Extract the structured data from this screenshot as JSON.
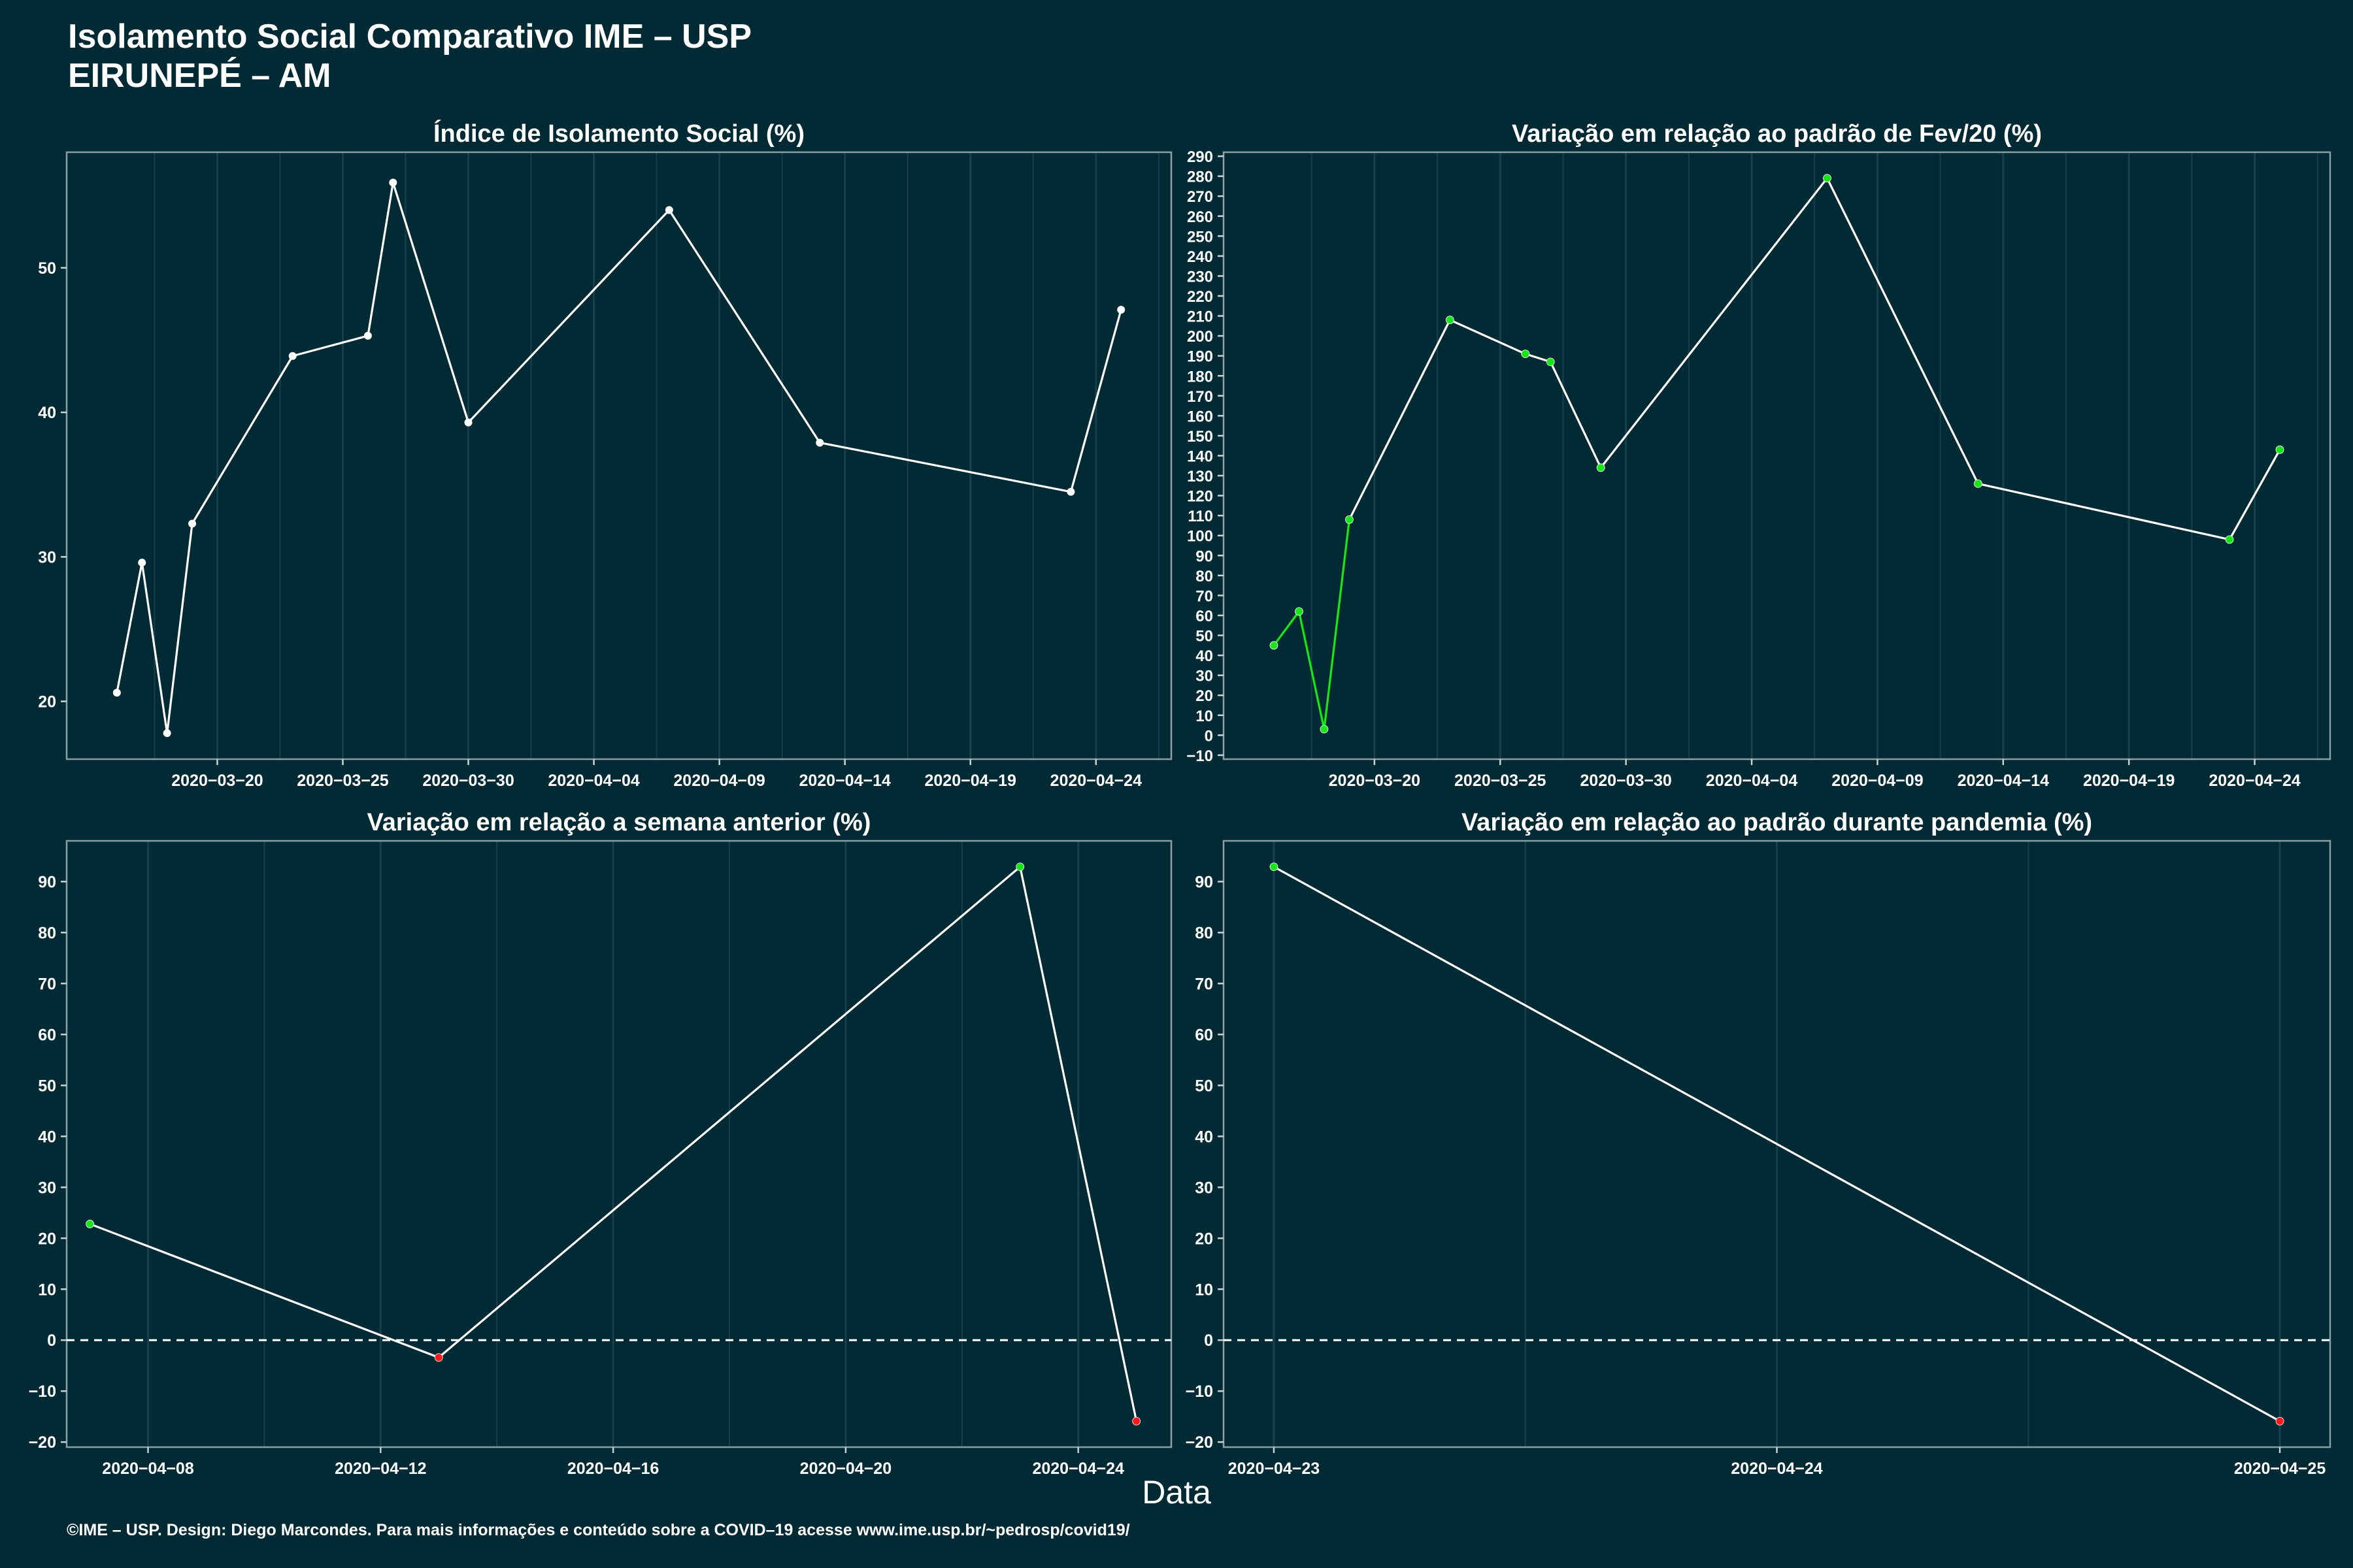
{
  "title": {
    "line1": "Isolamento Social Comparativo IME – USP",
    "line2": "EIRUNEPÉ – AM"
  },
  "xlabel": "Data",
  "footer": "©IME – USP. Design: Diego Marcondes. Para mais informações e conteúdo sobre a COVID–19 acesse www.ime.usp.br/~pedrosp/covid19/",
  "colors": {
    "background": "#022a35",
    "grid": "#17404a",
    "line": "#ffffff",
    "positive": "#19e619",
    "negative": "#ff1a1a",
    "white_point": "#ffffff"
  },
  "chart_data": [
    {
      "type": "line",
      "title": "Índice de Isolamento Social (%)",
      "x_type": "date",
      "xlim": [
        "2020-03-14",
        "2020-04-27"
      ],
      "ylim": [
        16,
        58
      ],
      "x_ticks": [
        "2020-03-20",
        "2020-03-25",
        "2020-03-30",
        "2020-04-04",
        "2020-04-09",
        "2020-04-14",
        "2020-04-19",
        "2020-04-24"
      ],
      "y_ticks": [
        20,
        30,
        40,
        50
      ],
      "grid": true,
      "points": [
        {
          "x": "2020-03-16",
          "y": 20.6,
          "color": "white"
        },
        {
          "x": "2020-03-17",
          "y": 29.6,
          "color": "white"
        },
        {
          "x": "2020-03-18",
          "y": 17.8,
          "color": "white"
        },
        {
          "x": "2020-03-19",
          "y": 32.3,
          "color": "white"
        },
        {
          "x": "2020-03-23",
          "y": 43.9,
          "color": "white"
        },
        {
          "x": "2020-03-26",
          "y": 45.3,
          "color": "white"
        },
        {
          "x": "2020-03-27",
          "y": 55.9,
          "color": "white"
        },
        {
          "x": "2020-03-30",
          "y": 39.3,
          "color": "white"
        },
        {
          "x": "2020-04-07",
          "y": 54.0,
          "color": "white"
        },
        {
          "x": "2020-04-13",
          "y": 37.9,
          "color": "white"
        },
        {
          "x": "2020-04-23",
          "y": 34.5,
          "color": "white"
        },
        {
          "x": "2020-04-25",
          "y": 47.1,
          "color": "white"
        }
      ]
    },
    {
      "type": "line",
      "title": "Variação em relação ao padrão de Fev/20 (%)",
      "x_type": "date",
      "xlim": [
        "2020-03-14",
        "2020-04-27"
      ],
      "ylim": [
        -12,
        292
      ],
      "x_ticks": [
        "2020-03-20",
        "2020-03-25",
        "2020-03-30",
        "2020-04-04",
        "2020-04-09",
        "2020-04-14",
        "2020-04-19",
        "2020-04-24"
      ],
      "y_ticks": [
        -10,
        0,
        10,
        20,
        30,
        40,
        50,
        60,
        70,
        80,
        90,
        100,
        110,
        120,
        130,
        140,
        150,
        160,
        170,
        180,
        190,
        200,
        210,
        220,
        230,
        240,
        250,
        260,
        270,
        280,
        290
      ],
      "grid": true,
      "green_segments_through": "2020-03-19",
      "points": [
        {
          "x": "2020-03-16",
          "y": 45,
          "color": "green"
        },
        {
          "x": "2020-03-17",
          "y": 62,
          "color": "green"
        },
        {
          "x": "2020-03-18",
          "y": 3,
          "color": "green"
        },
        {
          "x": "2020-03-19",
          "y": 108,
          "color": "green"
        },
        {
          "x": "2020-03-23",
          "y": 208,
          "color": "green"
        },
        {
          "x": "2020-03-26",
          "y": 191,
          "color": "green"
        },
        {
          "x": "2020-03-27",
          "y": 187,
          "color": "green"
        },
        {
          "x": "2020-03-29",
          "y": 134,
          "color": "green"
        },
        {
          "x": "2020-04-07",
          "y": 279,
          "color": "green"
        },
        {
          "x": "2020-04-13",
          "y": 126,
          "color": "green"
        },
        {
          "x": "2020-04-23",
          "y": 98,
          "color": "green"
        },
        {
          "x": "2020-04-25",
          "y": 143,
          "color": "green"
        }
      ]
    },
    {
      "type": "line",
      "title": "Variação em relação a semana anterior (%)",
      "x_type": "date",
      "xlim": [
        "2020-04-06.6",
        "2020-04-25.6"
      ],
      "ylim": [
        -21,
        98
      ],
      "x_ticks": [
        "2020-04-08",
        "2020-04-12",
        "2020-04-16",
        "2020-04-20",
        "2020-04-24"
      ],
      "y_ticks": [
        -20,
        -10,
        0,
        10,
        20,
        30,
        40,
        50,
        60,
        70,
        80,
        90
      ],
      "grid": true,
      "reference_line": 0,
      "points": [
        {
          "x": "2020-04-07",
          "y": 22.8,
          "color": "green"
        },
        {
          "x": "2020-04-13",
          "y": -3.4,
          "color": "red"
        },
        {
          "x": "2020-04-23",
          "y": 92.9,
          "color": "green"
        },
        {
          "x": "2020-04-25",
          "y": -15.9,
          "color": "red"
        }
      ]
    },
    {
      "type": "line",
      "title": "Variação em relação ao padrão durante pandemia (%)",
      "x_type": "date",
      "xlim": [
        "2020-04-22.9",
        "2020-04-25.1"
      ],
      "ylim": [
        -21,
        98
      ],
      "x_ticks": [
        "2020-04-23",
        "2020-04-24",
        "2020-04-25"
      ],
      "y_ticks": [
        -20,
        -10,
        0,
        10,
        20,
        30,
        40,
        50,
        60,
        70,
        80,
        90
      ],
      "grid": true,
      "reference_line": 0,
      "points": [
        {
          "x": "2020-04-23",
          "y": 92.9,
          "color": "green"
        },
        {
          "x": "2020-04-25",
          "y": -15.9,
          "color": "red"
        }
      ]
    }
  ]
}
